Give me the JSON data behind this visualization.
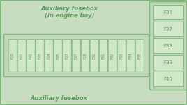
{
  "bg_color": "#d8e8d0",
  "outer_bg": "#c8dcc0",
  "border_color": "#7ab87a",
  "fuse_fill": "#c0d8b8",
  "fuse_cell_bg": "#d0e8c8",
  "text_color": "#5a9a5a",
  "title_top_line1": "Auxiliary fusebox",
  "title_top_line2": "(in engine bay)",
  "title_bottom": "Auxiliary fusebox",
  "row_fuses": [
    "F20",
    "F21",
    "F22",
    "F23",
    "F24",
    "F25",
    "F27",
    "F27",
    "F28",
    "F30",
    "F31",
    "F32",
    "F33",
    "F34",
    "F35"
  ],
  "side_fuses": [
    "F36",
    "F37",
    "F38",
    "F39",
    "F40"
  ],
  "font_size_title": 6.0,
  "font_size_fuse": 3.8,
  "font_size_side": 5.0,
  "fig_w": 2.68,
  "fig_h": 1.51,
  "dpi": 100
}
